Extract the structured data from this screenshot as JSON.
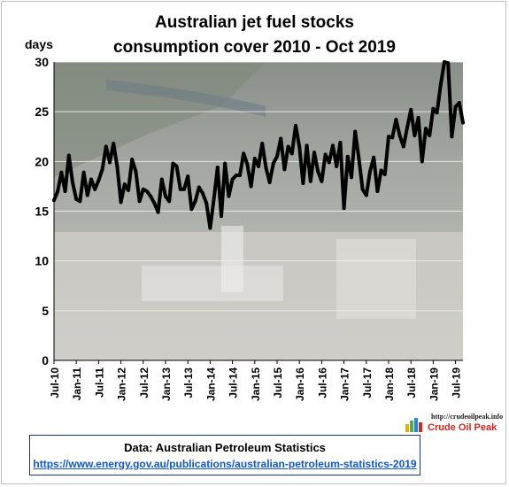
{
  "chart_data": {
    "type": "line",
    "title": [
      "Australian  jet fuel stocks",
      "consumption  cover 2010 - Oct 2019"
    ],
    "ylabel": "days",
    "xlabel": "",
    "ylim": [
      0,
      30
    ],
    "yticks": [
      0,
      5,
      10,
      15,
      20,
      25,
      30
    ],
    "grid": true,
    "legend": "none",
    "line_color": "#000000",
    "x_tick_labels": [
      "Jul-10",
      "Jan-11",
      "Jul-11",
      "Jan-12",
      "Jul-12",
      "Jan-13",
      "Jul-13",
      "Jan-14",
      "Jul-14",
      "Jan-15",
      "Jul-15",
      "Jan-16",
      "Jul-16",
      "Jan-17",
      "Jul-17",
      "Jan-18",
      "Jul-18",
      "Jan-19",
      "Jul-19"
    ],
    "series": [
      {
        "start": "Jul-10",
        "end": "Oct-19",
        "frequency": "monthly",
        "values": [
          16.1,
          17.0,
          18.9,
          17.0,
          20.6,
          17.9,
          16.2,
          16.0,
          18.9,
          16.6,
          18.2,
          17.2,
          18.1,
          19.2,
          21.5,
          19.9,
          21.8,
          19.5,
          15.9,
          17.7,
          17.1,
          20.2,
          19.0,
          16.0,
          17.2,
          17.0,
          16.5,
          15.8,
          14.9,
          18.2,
          16.5,
          16.0,
          19.8,
          19.5,
          17.2,
          17.2,
          18.5,
          15.2,
          16.0,
          17.4,
          16.8,
          15.8,
          13.3,
          16.2,
          19.4,
          14.5,
          19.8,
          16.5,
          18.2,
          18.6,
          18.6,
          20.8,
          19.7,
          17.5,
          20.3,
          19.5,
          21.8,
          19.4,
          17.9,
          19.8,
          20.5,
          22.3,
          19.2,
          21.5,
          20.8,
          23.6,
          21.5,
          17.8,
          21.6,
          18.0,
          20.9,
          19.0,
          18.0,
          20.7,
          19.9,
          21.6,
          19.5,
          21.9,
          15.3,
          20.5,
          18.4,
          23.0,
          20.3,
          17.2,
          16.6,
          19.0,
          20.4,
          17.0,
          19.1,
          18.7,
          22.5,
          22.4,
          24.2,
          22.6,
          21.5,
          23.4,
          25.2,
          22.6,
          24.4,
          20.0,
          23.3,
          22.6,
          25.3,
          24.9,
          27.7,
          30.1,
          29.9,
          22.5,
          25.5,
          25.9,
          23.9
        ]
      }
    ]
  },
  "source": {
    "title": "Data: Australian Petroleum Statistics",
    "url": "https://www.energy.gov.au/publications/australian-petroleum-statistics-2019"
  },
  "brand": {
    "url": "http://crudeoilpeak.info",
    "name": "Crude Oil Peak"
  }
}
